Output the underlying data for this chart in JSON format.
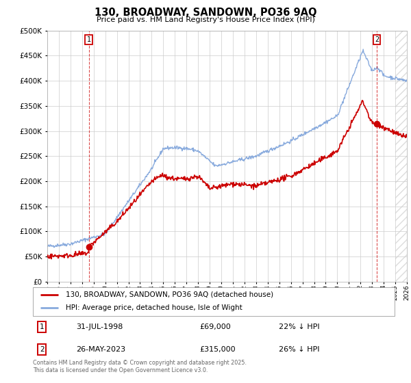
{
  "title": "130, BROADWAY, SANDOWN, PO36 9AQ",
  "subtitle": "Price paid vs. HM Land Registry's House Price Index (HPI)",
  "legend_line1": "130, BROADWAY, SANDOWN, PO36 9AQ (detached house)",
  "legend_line2": "HPI: Average price, detached house, Isle of Wight",
  "annotation1_label": "1",
  "annotation1_date": "31-JUL-1998",
  "annotation1_price": "£69,000",
  "annotation1_hpi": "22% ↓ HPI",
  "annotation1_year": 1998.58,
  "annotation1_value": 69000,
  "annotation2_label": "2",
  "annotation2_date": "26-MAY-2023",
  "annotation2_price": "£315,000",
  "annotation2_hpi": "26% ↓ HPI",
  "annotation2_year": 2023.4,
  "annotation2_value": 315000,
  "line_color_red": "#cc0000",
  "line_color_blue": "#88aadd",
  "ylim": [
    0,
    500000
  ],
  "yticks": [
    0,
    50000,
    100000,
    150000,
    200000,
    250000,
    300000,
    350000,
    400000,
    450000,
    500000
  ],
  "xmin": 1995,
  "xmax": 2026,
  "hatch_start": 2025.0,
  "footer": "Contains HM Land Registry data © Crown copyright and database right 2025.\nThis data is licensed under the Open Government Licence v3.0.",
  "background_color": "#ffffff",
  "grid_color": "#cccccc"
}
